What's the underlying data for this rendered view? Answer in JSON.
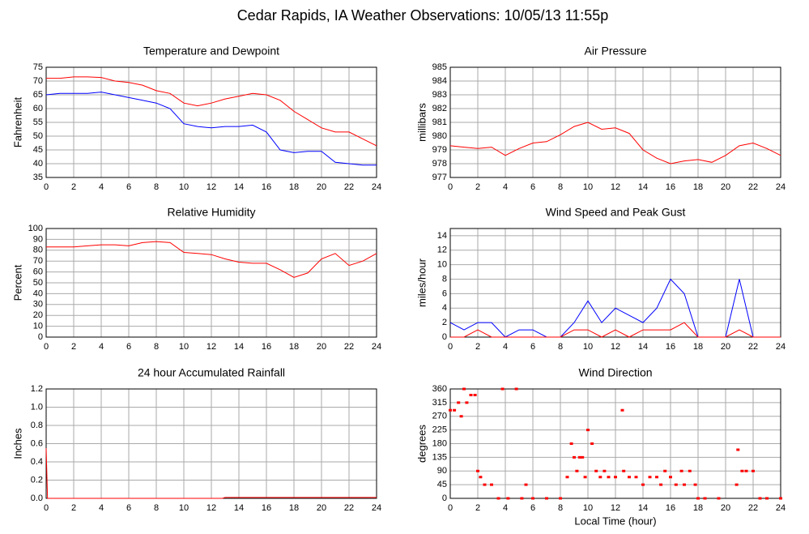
{
  "title": "Cedar Rapids, IA Weather Observations: 10/05/13 11:55p",
  "chart_data": [
    {
      "type": "line",
      "title": "Temperature and Dewpoint",
      "ylabel": "Fahrenheit",
      "x": [
        0,
        1,
        2,
        3,
        4,
        5,
        6,
        7,
        8,
        9,
        10,
        11,
        12,
        13,
        14,
        15,
        16,
        17,
        18,
        19,
        20,
        21,
        22,
        23,
        24
      ],
      "series": [
        {
          "color": "#ff0000",
          "values": [
            71,
            71,
            71.5,
            71.5,
            71.3,
            70,
            69.5,
            68.5,
            66.5,
            65.5,
            62,
            61,
            62,
            63.5,
            64.5,
            65.5,
            65,
            63,
            59,
            56,
            53,
            51.5,
            51.5,
            49,
            46.5
          ]
        },
        {
          "color": "#0000ff",
          "values": [
            65,
            65.5,
            65.5,
            65.5,
            66,
            65,
            64,
            63,
            62,
            60,
            54.5,
            53.5,
            53,
            53.5,
            53.5,
            54,
            51.5,
            45,
            44,
            44.5,
            44.5,
            40.5,
            40,
            39.5,
            39.5
          ]
        }
      ],
      "xlim": [
        0,
        24
      ],
      "xticks": [
        0,
        2,
        4,
        6,
        8,
        10,
        12,
        14,
        16,
        18,
        20,
        22,
        24
      ],
      "ylim": [
        35,
        75
      ],
      "yticks": [
        35,
        40,
        45,
        50,
        55,
        60,
        65,
        70,
        75
      ],
      "grid": true
    },
    {
      "type": "line",
      "title": "Air Pressure",
      "ylabel": "millibars",
      "x": [
        0,
        1,
        2,
        3,
        4,
        5,
        6,
        7,
        8,
        9,
        10,
        11,
        12,
        13,
        14,
        15,
        16,
        17,
        18,
        19,
        20,
        21,
        22,
        23,
        24
      ],
      "values": [
        979.3,
        979.2,
        979.1,
        979.2,
        978.6,
        979.1,
        979.5,
        979.6,
        980.1,
        980.7,
        981.0,
        980.5,
        980.6,
        980.2,
        979.0,
        978.4,
        978.0,
        978.2,
        978.3,
        978.1,
        978.6,
        979.3,
        979.5,
        979.1,
        978.6
      ],
      "color": "#ff0000",
      "xlim": [
        0,
        24
      ],
      "xticks": [
        0,
        2,
        4,
        6,
        8,
        10,
        12,
        14,
        16,
        18,
        20,
        22,
        24
      ],
      "ylim": [
        977,
        985
      ],
      "yticks": [
        977,
        978,
        979,
        980,
        981,
        982,
        983,
        984,
        985
      ],
      "grid": true
    },
    {
      "type": "line",
      "title": "Relative Humidity",
      "ylabel": "Percent",
      "x": [
        0,
        1,
        2,
        3,
        4,
        5,
        6,
        7,
        8,
        9,
        10,
        11,
        12,
        13,
        14,
        15,
        16,
        17,
        18,
        19,
        20,
        21,
        22,
        23,
        24
      ],
      "values": [
        83,
        83,
        83,
        84,
        85,
        85,
        84,
        87,
        88,
        87,
        78,
        77,
        76,
        72,
        69,
        68,
        68,
        62,
        55,
        59,
        72,
        77,
        66,
        70,
        77
      ],
      "color": "#ff0000",
      "xlim": [
        0,
        24
      ],
      "xticks": [
        0,
        2,
        4,
        6,
        8,
        10,
        12,
        14,
        16,
        18,
        20,
        22,
        24
      ],
      "ylim": [
        0,
        100
      ],
      "yticks": [
        0,
        10,
        20,
        30,
        40,
        50,
        60,
        70,
        80,
        90,
        100
      ],
      "grid": true
    },
    {
      "type": "line",
      "title": "Wind Speed and Peak Gust",
      "ylabel": "miles/hour",
      "x": [
        0,
        1,
        2,
        3,
        4,
        5,
        6,
        7,
        8,
        9,
        10,
        11,
        12,
        13,
        14,
        15,
        16,
        17,
        18,
        19,
        20,
        21,
        22,
        23,
        24
      ],
      "series": [
        {
          "color": "#0000ff",
          "values": [
            2,
            1,
            2,
            2,
            0,
            1,
            1,
            0,
            0,
            2,
            5,
            2,
            4,
            3,
            2,
            4,
            8,
            6,
            0,
            0,
            0,
            8,
            0,
            0,
            0
          ]
        },
        {
          "color": "#ff0000",
          "values": [
            0,
            0,
            1,
            0,
            0,
            0,
            0,
            0,
            0,
            1,
            1,
            0,
            1,
            0,
            1,
            1,
            1,
            2,
            0,
            0,
            0,
            1,
            0,
            0,
            0
          ]
        }
      ],
      "xlim": [
        0,
        24
      ],
      "xticks": [
        0,
        2,
        4,
        6,
        8,
        10,
        12,
        14,
        16,
        18,
        20,
        22,
        24
      ],
      "ylim": [
        0,
        15
      ],
      "yticks": [
        0,
        2,
        4,
        6,
        8,
        10,
        12,
        14
      ],
      "grid": true
    },
    {
      "type": "line",
      "title": "24 hour Accumulated Rainfall",
      "ylabel": "Inches",
      "x": [
        0,
        0.1,
        12.8,
        13,
        24
      ],
      "values": [
        0.55,
        0,
        0,
        0.01,
        0.01
      ],
      "color": "#ff0000",
      "xlim": [
        0,
        24
      ],
      "xticks": [
        0,
        2,
        4,
        6,
        8,
        10,
        12,
        14,
        16,
        18,
        20,
        22,
        24
      ],
      "ylim": [
        0,
        1.2
      ],
      "yticks": [
        {
          "value": 0,
          "label": "0.0"
        },
        0.2,
        0.4,
        0.6,
        0.8,
        {
          "value": 1,
          "label": "1.0"
        },
        1.2
      ],
      "grid": true
    },
    {
      "type": "scatter",
      "title": "Wind Direction",
      "ylabel": "degrees",
      "xlabel": "Local Time (hour)",
      "x": [
        0,
        0.3,
        0.6,
        0.8,
        1.0,
        1.2,
        1.5,
        1.8,
        2.0,
        2.2,
        2.5,
        3.0,
        3.5,
        3.8,
        4.2,
        4.8,
        5.2,
        5.5,
        6.0,
        7.0,
        8.0,
        8.5,
        8.8,
        9.0,
        9.2,
        9.4,
        9.6,
        9.8,
        10.0,
        10.3,
        10.6,
        10.9,
        11.2,
        11.5,
        12.0,
        12.5,
        12.6,
        13.0,
        13.5,
        14.0,
        14.5,
        15.0,
        15.3,
        15.6,
        16.0,
        16.4,
        16.8,
        17.0,
        17.4,
        17.8,
        18.0,
        18.5,
        19.5,
        20.8,
        20.9,
        21.2,
        21.5,
        22.0,
        22.5,
        23.0,
        24.0
      ],
      "values": [
        290,
        290,
        315,
        270,
        360,
        315,
        340,
        340,
        90,
        70,
        45,
        45,
        0,
        360,
        0,
        360,
        0,
        45,
        0,
        0,
        0,
        70,
        180,
        135,
        90,
        135,
        135,
        70,
        225,
        180,
        90,
        70,
        90,
        70,
        70,
        290,
        90,
        70,
        70,
        45,
        70,
        70,
        45,
        90,
        70,
        45,
        90,
        45,
        90,
        45,
        0,
        0,
        0,
        45,
        160,
        90,
        90,
        90,
        0,
        0,
        0
      ],
      "color": "#ff0000",
      "xlim": [
        0,
        24
      ],
      "xticks": [
        0,
        2,
        4,
        6,
        8,
        10,
        12,
        14,
        16,
        18,
        20,
        22,
        24
      ],
      "ylim": [
        0,
        360
      ],
      "yticks": [
        0,
        45,
        90,
        135,
        180,
        225,
        270,
        315,
        360
      ],
      "grid": true
    }
  ]
}
